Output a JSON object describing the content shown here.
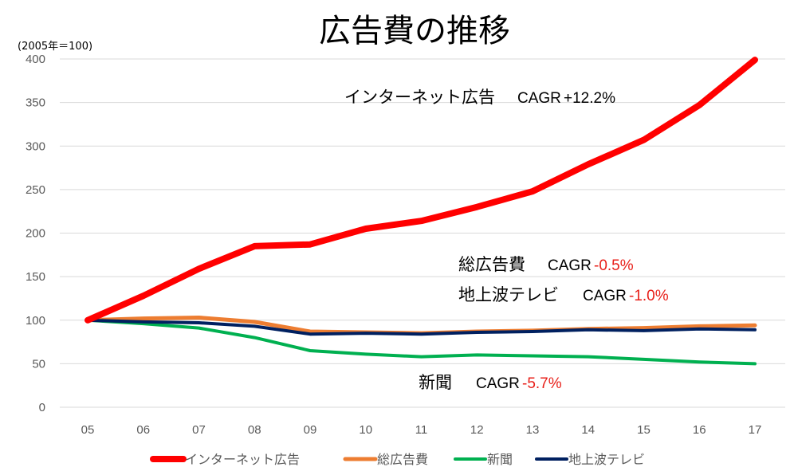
{
  "chart_data": {
    "type": "line",
    "title": "広告費の推移",
    "subtitle": "(2005年＝100)",
    "xlabel": "",
    "ylabel": "",
    "categories": [
      "05",
      "06",
      "07",
      "08",
      "09",
      "10",
      "11",
      "12",
      "13",
      "14",
      "15",
      "16",
      "17"
    ],
    "ylim": [
      0,
      400
    ],
    "yticks": [
      0,
      50,
      100,
      150,
      200,
      250,
      300,
      350,
      400
    ],
    "grid": true,
    "legend_position": "bottom",
    "series": [
      {
        "name": "インターネット広告",
        "color": "#ff0000",
        "values": [
          100,
          128,
          159,
          185,
          187,
          205,
          214,
          230,
          248,
          279,
          307,
          347,
          399
        ]
      },
      {
        "name": "総広告費",
        "color": "#ed7d31",
        "values": [
          100,
          102,
          103,
          98,
          87,
          86,
          85,
          87,
          88,
          90,
          91,
          93,
          94
        ]
      },
      {
        "name": "新聞",
        "color": "#00b050",
        "values": [
          100,
          96,
          91,
          80,
          65,
          61,
          58,
          60,
          59,
          58,
          55,
          52,
          50
        ]
      },
      {
        "name": "地上波テレビ",
        "color": "#002060",
        "values": [
          100,
          98,
          97,
          93,
          84,
          85,
          84,
          86,
          87,
          89,
          88,
          90,
          89
        ]
      }
    ],
    "annotations": [
      {
        "label": "インターネット広告",
        "cagr_label": "CAGR",
        "cagr_value": "+12.2%",
        "value_color": "#000000"
      },
      {
        "label": "総広告費",
        "cagr_label": "CAGR",
        "cagr_value": "-0.5%",
        "value_color": "#e8201a"
      },
      {
        "label": "地上波テレビ",
        "cagr_label": "CAGR",
        "cagr_value": "-1.0%",
        "value_color": "#e8201a"
      },
      {
        "label": "新聞",
        "cagr_label": "CAGR",
        "cagr_value": "-5.7%",
        "value_color": "#e8201a"
      }
    ],
    "colors": {
      "grid": "#d9d9d9",
      "tick_text": "#595959"
    }
  }
}
